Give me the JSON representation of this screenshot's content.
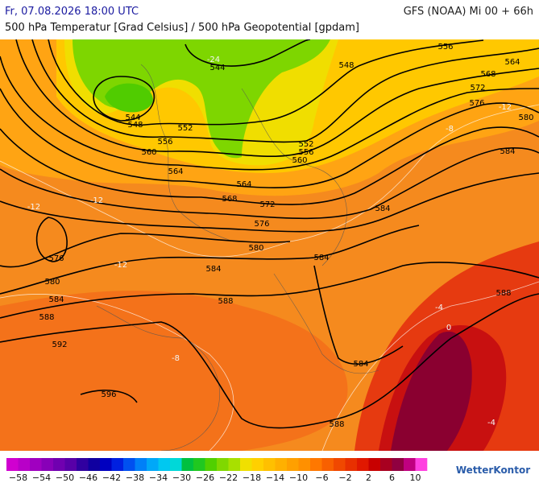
{
  "header": {
    "date": "Fr, 07.08.2026 18:00 UTC",
    "model": "GFS (NOAA) Mi 00 + 66h",
    "subtitle": "500 hPa Temperatur [Grad Celsius] / 500 hPa Geopotential [gpdam]"
  },
  "contour_labels": [
    "544",
    "544",
    "548",
    "548",
    "552",
    "556",
    "560",
    "564",
    "552",
    "556",
    "560",
    "564",
    "568",
    "572",
    "576",
    "580",
    "584",
    "584",
    "584",
    "576",
    "580",
    "584",
    "588",
    "592",
    "588",
    "596",
    "588",
    "584",
    "588",
    "584",
    "580",
    "576",
    "572",
    "568",
    "564",
    "556"
  ],
  "isotherm_labels": [
    "-24",
    "-12",
    "-12",
    "-12",
    "-8",
    "-4",
    "0",
    "-4",
    "-8",
    "-12"
  ],
  "colorbar": {
    "colors": [
      "#d000d0",
      "#b800c8",
      "#a000c0",
      "#8800b8",
      "#7000b0",
      "#5800a8",
      "#3000a0",
      "#1000a0",
      "#0000c0",
      "#0020e0",
      "#0050f0",
      "#0080f8",
      "#00a8f8",
      "#00c8f0",
      "#00d8d8",
      "#00c040",
      "#20c820",
      "#50d000",
      "#80d800",
      "#a8e000",
      "#f0e000",
      "#ffd000",
      "#ffc000",
      "#ffb000",
      "#ffa000",
      "#ff9000",
      "#ff7800",
      "#f86000",
      "#f04800",
      "#e83000",
      "#e01800",
      "#c80000",
      "#a80020",
      "#900040",
      "#c00080",
      "#ff40e0"
    ],
    "labels": [
      "−58",
      "−54",
      "−50",
      "−46",
      "−42",
      "−38",
      "−34",
      "−30",
      "−26",
      "−22",
      "−18",
      "−14",
      "−10",
      "−6",
      "−2",
      "2",
      "6",
      "10"
    ]
  },
  "brand": "WetterKontor"
}
